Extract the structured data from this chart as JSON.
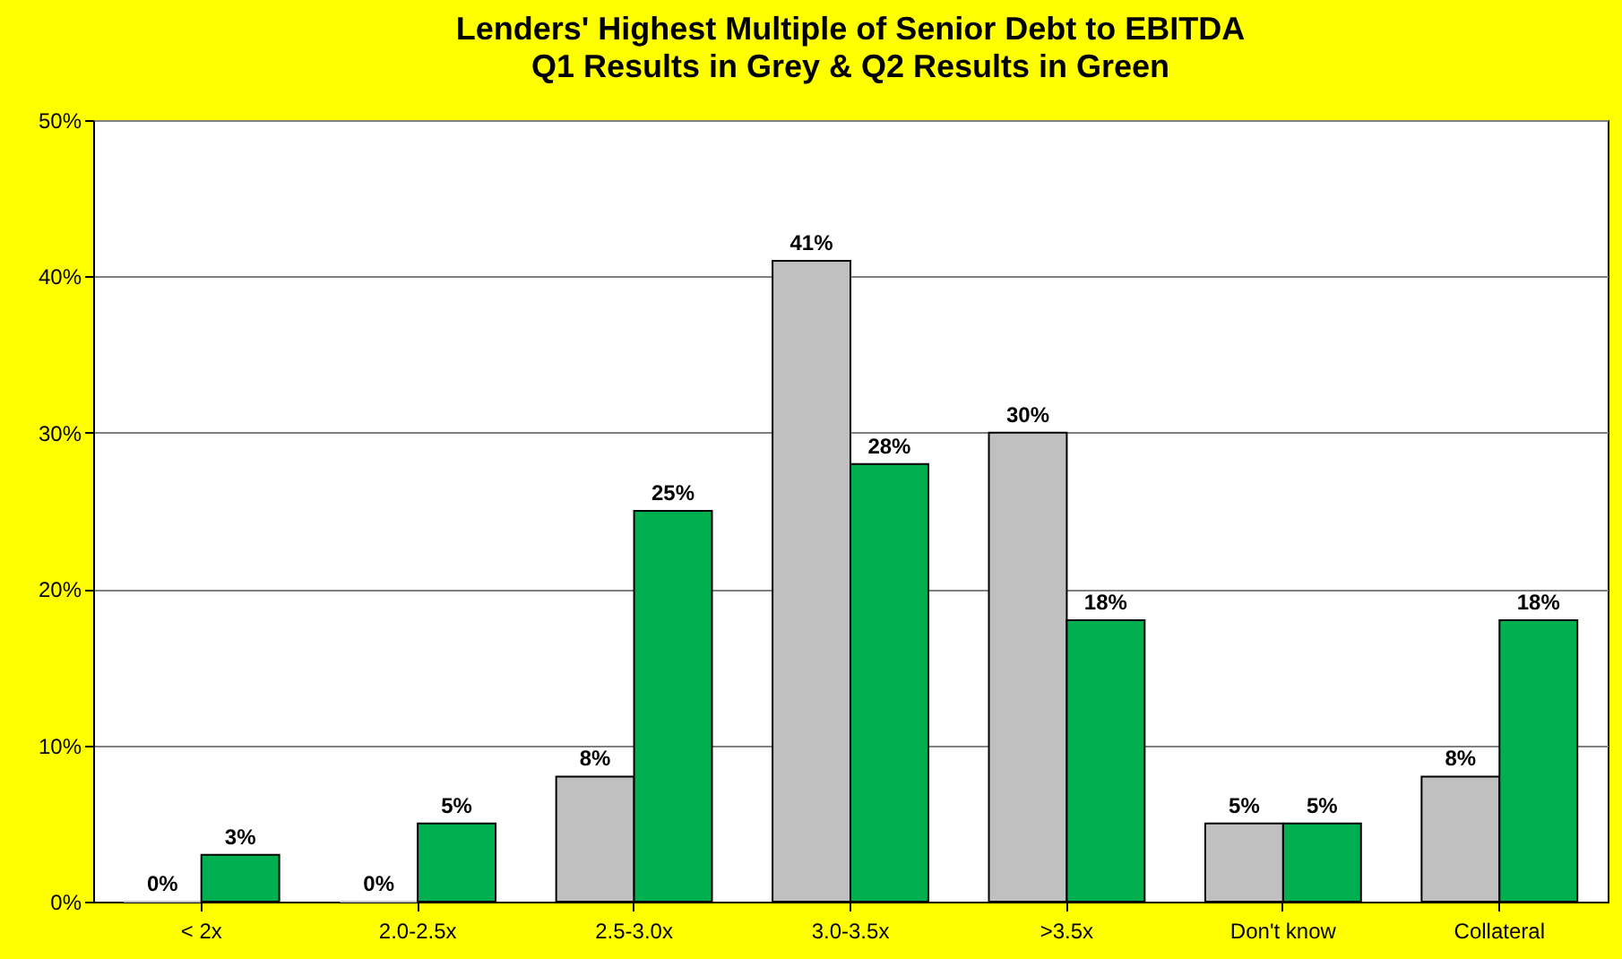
{
  "chart_data": {
    "type": "bar",
    "title": "Lenders' Highest Multiple of Senior Debt to EBITDA",
    "subtitle": "Q1 Results in Grey & Q2 Results in Green",
    "categories": [
      "< 2x",
      "2.0-2.5x",
      "2.5-3.0x",
      "3.0-3.5x",
      ">3.5x",
      "Don't know",
      "Collateral"
    ],
    "series": [
      {
        "color": "#c0c0c0",
        "values": [
          0,
          0,
          8,
          41,
          30,
          5,
          8
        ],
        "value_labels": [
          "0%",
          "0%",
          "8%",
          "41%",
          "30%",
          "5%",
          "8%"
        ]
      },
      {
        "color": "#00b050",
        "values": [
          3,
          5,
          25,
          28,
          18,
          5,
          18
        ],
        "value_labels": [
          "3%",
          "5%",
          "25%",
          "28%",
          "18%",
          "5%",
          "18%"
        ]
      }
    ],
    "ylim": [
      0,
      50
    ],
    "yticks": [
      {
        "value": 0,
        "label": "0%"
      },
      {
        "value": 10,
        "label": "10%"
      },
      {
        "value": 20,
        "label": "20%"
      },
      {
        "value": 30,
        "label": "30%"
      },
      {
        "value": 40,
        "label": "40%"
      },
      {
        "value": 50,
        "label": "50%"
      }
    ],
    "grid": "y",
    "legend": false
  }
}
